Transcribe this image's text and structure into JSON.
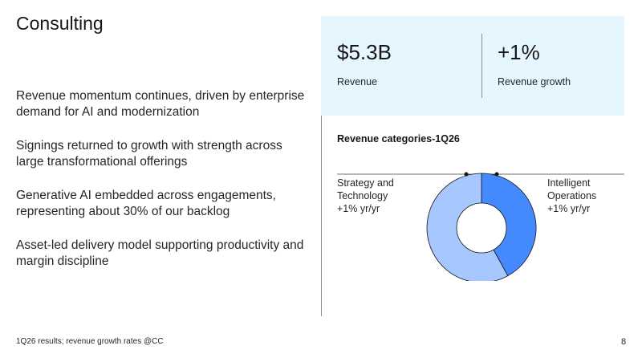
{
  "title": "Consulting",
  "bullets": [
    "Revenue momentum continues, driven by enterprise demand for AI and modernization",
    "Signings returned to growth with strength across large transformational offerings",
    "Generative AI embedded across engagements, representing about 30% of our backlog",
    "Asset-led delivery model supporting productivity and margin discipline"
  ],
  "kpis": [
    {
      "value": "$5.3B",
      "label": "Revenue"
    },
    {
      "value": "+1%",
      "label": "Revenue growth"
    }
  ],
  "chart_data": {
    "type": "pie",
    "title": "Revenue categories-1Q26",
    "slices": [
      {
        "name": "Intelligent Operations",
        "share": 0.42,
        "growth": "+1% yr/yr",
        "color": "#4589ff"
      },
      {
        "name": "Strategy and Technology",
        "share": 0.58,
        "growth": "+1% yr/yr",
        "color": "#a6c8ff"
      }
    ]
  },
  "labels": {
    "left": {
      "line1": "Strategy and",
      "line2": "Technology",
      "line3": "+1% yr/yr"
    },
    "right": {
      "line1": "Intelligent",
      "line2": "Operations",
      "line3": "+1% yr/yr"
    }
  },
  "footnote": "1Q26 results; revenue growth rates @CC",
  "page_number": "8"
}
